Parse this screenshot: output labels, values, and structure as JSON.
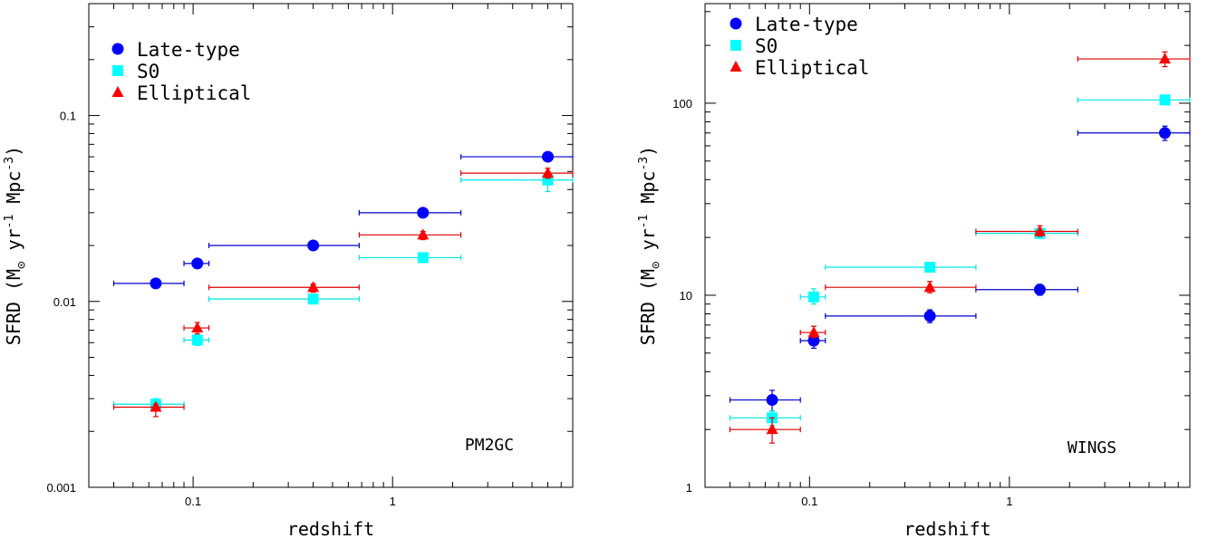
{
  "chart_data": [
    {
      "type": "scatter",
      "panel_label": "PM2GC",
      "xlabel": "redshift",
      "ylabel_main": "SFRD (M",
      "ylabel_sub": "⊙",
      "ylabel_rest": " yr",
      "ylabel_exp1": "-1",
      "ylabel_mid": " Mpc",
      "ylabel_exp2": "-3",
      "ylabel_end": ")",
      "xscale": "log",
      "yscale": "log",
      "xlim": [
        0.03,
        8
      ],
      "ylim": [
        0.001,
        0.4
      ],
      "x_ticks": [
        {
          "v": 0.1,
          "label": "0.1"
        },
        {
          "v": 1,
          "label": "1"
        }
      ],
      "y_ticks": [
        {
          "v": 0.001,
          "label": "0.001"
        },
        {
          "v": 0.01,
          "label": "0.01"
        },
        {
          "v": 0.1,
          "label": "0.1"
        }
      ],
      "legend_position": "top-left",
      "series": [
        {
          "name": "Late-type",
          "marker": "circle",
          "color": "#0000ff",
          "errcolor": "#0000cc",
          "points": [
            {
              "x": 0.065,
              "xlo": 0.04,
              "xhi": 0.09,
              "y": 0.0125,
              "ylo": 0.0125,
              "yhi": 0.0125
            },
            {
              "x": 0.105,
              "xlo": 0.09,
              "xhi": 0.12,
              "y": 0.016,
              "ylo": 0.016,
              "yhi": 0.016
            },
            {
              "x": 0.4,
              "xlo": 0.12,
              "xhi": 0.68,
              "y": 0.02,
              "ylo": 0.02,
              "yhi": 0.02
            },
            {
              "x": 1.42,
              "xlo": 0.68,
              "xhi": 2.2,
              "y": 0.03,
              "ylo": 0.03,
              "yhi": 0.03
            },
            {
              "x": 6.0,
              "xlo": 2.2,
              "xhi": 8.0,
              "y": 0.06,
              "ylo": 0.06,
              "yhi": 0.06
            }
          ]
        },
        {
          "name": "S0",
          "marker": "square",
          "color": "#00ffff",
          "errcolor": "#00e5e5",
          "points": [
            {
              "x": 0.065,
              "xlo": 0.04,
              "xhi": 0.09,
              "y": 0.0028,
              "ylo": 0.0027,
              "yhi": 0.003
            },
            {
              "x": 0.105,
              "xlo": 0.09,
              "xhi": 0.12,
              "y": 0.0062,
              "ylo": 0.0058,
              "yhi": 0.0066
            },
            {
              "x": 0.4,
              "xlo": 0.12,
              "xhi": 0.68,
              "y": 0.0103,
              "ylo": 0.01,
              "yhi": 0.0107
            },
            {
              "x": 1.42,
              "xlo": 0.68,
              "xhi": 2.2,
              "y": 0.0172,
              "ylo": 0.0172,
              "yhi": 0.0172
            },
            {
              "x": 6.0,
              "xlo": 2.2,
              "xhi": 8.0,
              "y": 0.045,
              "ylo": 0.039,
              "yhi": 0.05
            }
          ]
        },
        {
          "name": "Elliptical",
          "marker": "triangle",
          "color": "#ff0000",
          "errcolor": "#dd0000",
          "points": [
            {
              "x": 0.065,
              "xlo": 0.04,
              "xhi": 0.09,
              "y": 0.0027,
              "ylo": 0.0024,
              "yhi": 0.0028
            },
            {
              "x": 0.105,
              "xlo": 0.09,
              "xhi": 0.12,
              "y": 0.0072,
              "ylo": 0.0067,
              "yhi": 0.0077
            },
            {
              "x": 0.4,
              "xlo": 0.12,
              "xhi": 0.68,
              "y": 0.0119,
              "ylo": 0.0112,
              "yhi": 0.0124
            },
            {
              "x": 1.42,
              "xlo": 0.68,
              "xhi": 2.2,
              "y": 0.0228,
              "ylo": 0.0215,
              "yhi": 0.0238
            },
            {
              "x": 6.0,
              "xlo": 2.2,
              "xhi": 8.0,
              "y": 0.049,
              "ylo": 0.046,
              "yhi": 0.052
            }
          ]
        }
      ]
    },
    {
      "type": "scatter",
      "panel_label": "WINGS",
      "xlabel": "redshift",
      "ylabel_main": "SFRD (M",
      "ylabel_sub": "⊙",
      "ylabel_rest": " yr",
      "ylabel_exp1": "-1",
      "ylabel_mid": " Mpc",
      "ylabel_exp2": "-3",
      "ylabel_end": ")",
      "xscale": "log",
      "yscale": "log",
      "xlim": [
        0.03,
        8
      ],
      "ylim": [
        1,
        330
      ],
      "x_ticks": [
        {
          "v": 0.1,
          "label": "0.1"
        },
        {
          "v": 1,
          "label": "1"
        }
      ],
      "y_ticks": [
        {
          "v": 1,
          "label": "1"
        },
        {
          "v": 10,
          "label": "10"
        },
        {
          "v": 100,
          "label": "100"
        }
      ],
      "legend_position": "top-left",
      "series": [
        {
          "name": "Late-type",
          "marker": "circle",
          "color": "#0000ff",
          "errcolor": "#0000cc",
          "points": [
            {
              "x": 0.065,
              "xlo": 0.04,
              "xhi": 0.09,
              "y": 2.85,
              "ylo": 2.5,
              "yhi": 3.2
            },
            {
              "x": 0.105,
              "xlo": 0.09,
              "xhi": 0.12,
              "y": 5.8,
              "ylo": 5.3,
              "yhi": 6.3
            },
            {
              "x": 0.4,
              "xlo": 0.12,
              "xhi": 0.68,
              "y": 7.8,
              "ylo": 7.2,
              "yhi": 8.4
            },
            {
              "x": 1.42,
              "xlo": 0.68,
              "xhi": 2.2,
              "y": 10.7,
              "ylo": 10.0,
              "yhi": 11.4
            },
            {
              "x": 6.0,
              "xlo": 2.2,
              "xhi": 8.0,
              "y": 70,
              "ylo": 64,
              "yhi": 76
            }
          ]
        },
        {
          "name": "S0",
          "marker": "square",
          "color": "#00ffff",
          "errcolor": "#00e5e5",
          "points": [
            {
              "x": 0.065,
              "xlo": 0.04,
              "xhi": 0.09,
              "y": 2.3,
              "ylo": 2.1,
              "yhi": 2.5
            },
            {
              "x": 0.105,
              "xlo": 0.09,
              "xhi": 0.12,
              "y": 9.8,
              "ylo": 9.0,
              "yhi": 10.8
            },
            {
              "x": 0.4,
              "xlo": 0.12,
              "xhi": 0.68,
              "y": 14.0,
              "ylo": 13.3,
              "yhi": 14.8
            },
            {
              "x": 1.42,
              "xlo": 0.68,
              "xhi": 2.2,
              "y": 21.0,
              "ylo": 19.8,
              "yhi": 22.2
            },
            {
              "x": 6.0,
              "xlo": 2.2,
              "xhi": 8.0,
              "y": 104,
              "ylo": 104,
              "yhi": 104
            }
          ]
        },
        {
          "name": "Elliptical",
          "marker": "triangle",
          "color": "#ff0000",
          "errcolor": "#dd0000",
          "points": [
            {
              "x": 0.065,
              "xlo": 0.04,
              "xhi": 0.09,
              "y": 2.0,
              "ylo": 1.7,
              "yhi": 2.3
            },
            {
              "x": 0.105,
              "xlo": 0.09,
              "xhi": 0.12,
              "y": 6.4,
              "ylo": 6.0,
              "yhi": 6.9
            },
            {
              "x": 0.4,
              "xlo": 0.12,
              "xhi": 0.68,
              "y": 11.0,
              "ylo": 10.3,
              "yhi": 11.8
            },
            {
              "x": 1.42,
              "xlo": 0.68,
              "xhi": 2.2,
              "y": 21.5,
              "ylo": 20.3,
              "yhi": 23.0
            },
            {
              "x": 6.0,
              "xlo": 2.2,
              "xhi": 8.0,
              "y": 170,
              "ylo": 155,
              "yhi": 185
            }
          ]
        }
      ]
    }
  ]
}
